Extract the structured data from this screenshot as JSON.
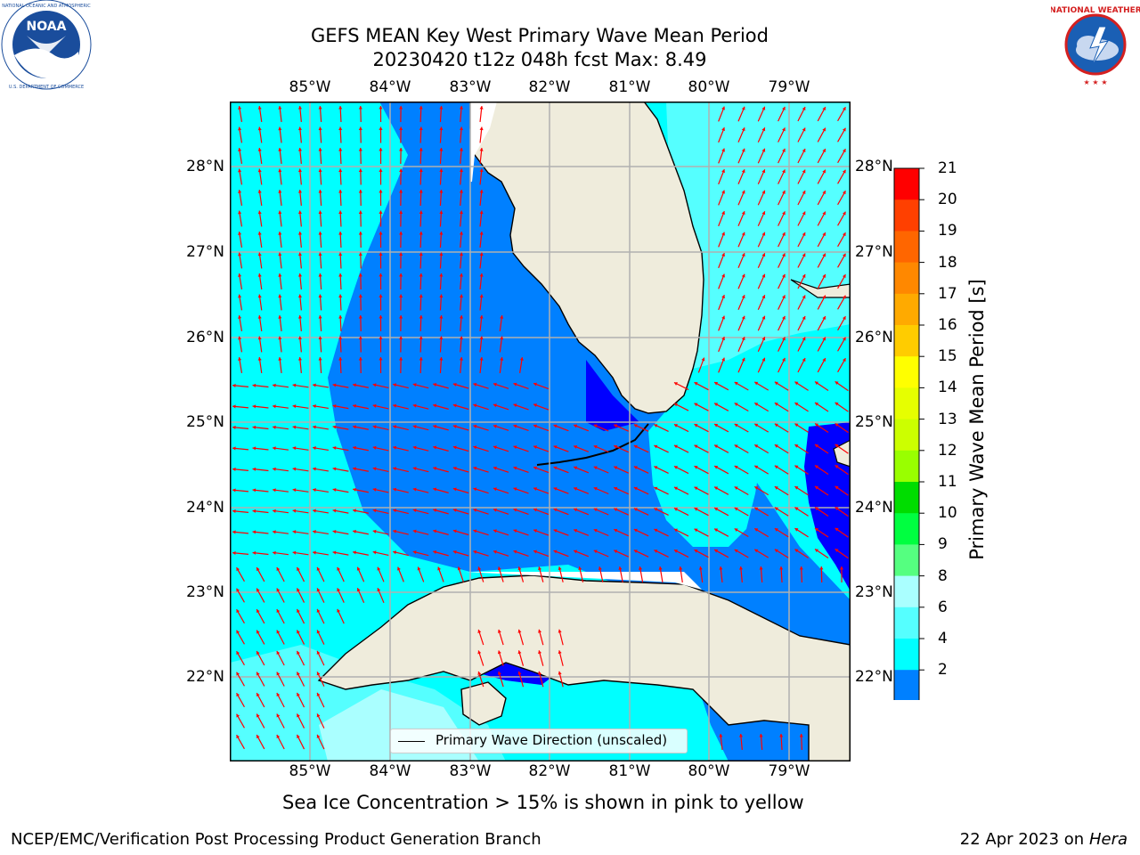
{
  "header": {
    "title_line1": "GEFS MEAN Key West Primary Wave Mean Period",
    "title_line2": "20230420 t12z 048h fcst   Max: 8.49"
  },
  "logos": {
    "left": {
      "name": "NOAA",
      "ring_text": "NATIONAL OCEANIC AND ATMOSPHERIC ADMINISTRATION · U.S. DEPARTMENT OF COMMERCE",
      "color": "#1a4d9c"
    },
    "right": {
      "name": "NATIONAL WEATHER SERVICE",
      "color": "#d42020"
    }
  },
  "map": {
    "lon_labels": [
      "85°W",
      "84°W",
      "83°W",
      "82°W",
      "81°W",
      "80°W",
      "79°W"
    ],
    "lat_labels": [
      "28°N",
      "27°N",
      "26°N",
      "25°N",
      "24°N",
      "23°N",
      "22°N"
    ],
    "land_color": "#efecdc",
    "ocean_colors": {
      "2-4": "#0080ff",
      "4-6": "#00ffff",
      "6-8": "#55ffff",
      "8-9": "#aaffff",
      "lt2": "#0000ff"
    },
    "arrow_color": "#ff0000"
  },
  "legend": {
    "label": "Primary Wave Direction (unscaled)"
  },
  "colorbar": {
    "label": "Primary Wave Mean Period [s]",
    "ticks": [
      "21",
      "20",
      "19",
      "18",
      "17",
      "16",
      "15",
      "14",
      "13",
      "12",
      "11",
      "10",
      "9",
      "8",
      "6",
      "4",
      "2"
    ],
    "colors": [
      "#ff0000",
      "#ff4000",
      "#ff6600",
      "#ff8800",
      "#ffaa00",
      "#ffcc00",
      "#ffff00",
      "#e6ff00",
      "#ccff00",
      "#99ff00",
      "#00dd00",
      "#00ff40",
      "#55ff80",
      "#aaffff",
      "#55ffff",
      "#00ffff",
      "#0080ff"
    ],
    "extend_color": "#0000ff"
  },
  "notes": {
    "sea_ice": "Sea Ice Concentration > 15% is shown in pink to yellow"
  },
  "footer": {
    "left": "NCEP/EMC/Verification Post Processing Product Generation Branch",
    "right_prefix": "22 Apr 2023 on ",
    "right_machine": "Hera"
  }
}
